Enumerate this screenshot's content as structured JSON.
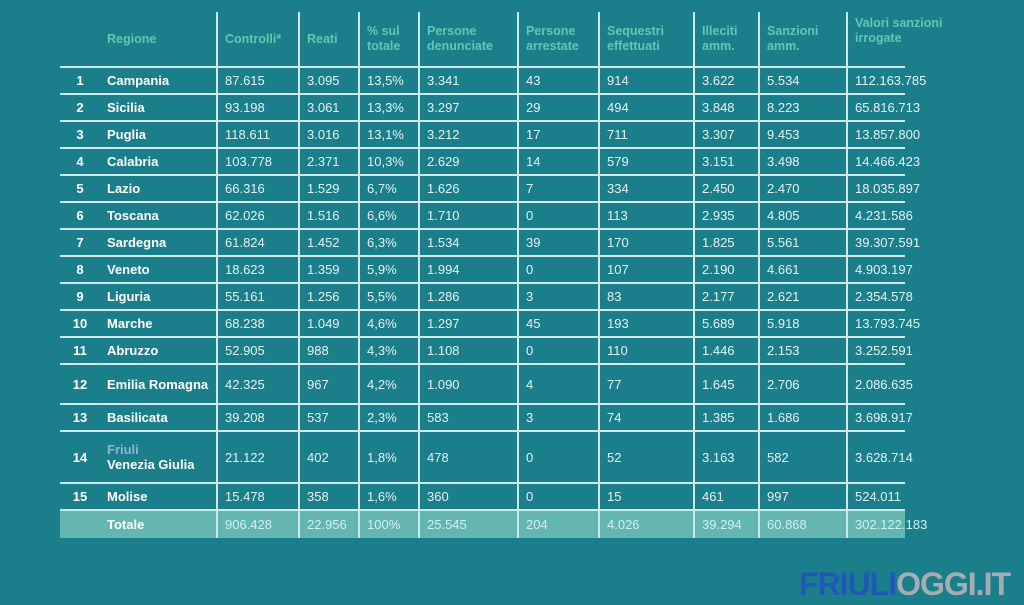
{
  "headers": [
    "",
    "Regione",
    "Controlli*",
    "Reati",
    "% sul totale",
    "Persone denunciate",
    "Persone arrestate",
    "Sequestri effettuati",
    "Illeciti amm.",
    "Sanzioni amm.",
    "Valori sanzioni irrogate"
  ],
  "rows": [
    [
      "1",
      "Campania",
      "87.615",
      "3.095",
      "13,5%",
      "3.341",
      "43",
      "914",
      "3.622",
      "5.534",
      "112.163.785"
    ],
    [
      "2",
      "Sicilia",
      "93.198",
      "3.061",
      "13,3%",
      "3.297",
      "29",
      "494",
      "3.848",
      "8.223",
      "65.816.713"
    ],
    [
      "3",
      "Puglia",
      "118.611",
      "3.016",
      "13,1%",
      "3.212",
      "17",
      "711",
      "3.307",
      "9.453",
      "13.857.800"
    ],
    [
      "4",
      "Calabria",
      "103.778",
      "2.371",
      "10,3%",
      "2.629",
      "14",
      "579",
      "3.151",
      "3.498",
      "14.466.423"
    ],
    [
      "5",
      "Lazio",
      "66.316",
      "1.529",
      "6,7%",
      "1.626",
      "7",
      "334",
      "2.450",
      "2.470",
      "18.035.897"
    ],
    [
      "6",
      "Toscana",
      "62.026",
      "1.516",
      "6,6%",
      "1.710",
      "0",
      "113",
      "2.935",
      "4.805",
      "4.231.586"
    ],
    [
      "7",
      "Sardegna",
      "61.824",
      "1.452",
      "6,3%",
      "1.534",
      "39",
      "170",
      "1.825",
      "5.561",
      "39.307.591"
    ],
    [
      "8",
      "Veneto",
      "18.623",
      "1.359",
      "5,9%",
      "1.994",
      "0",
      "107",
      "2.190",
      "4.661",
      "4.903.197"
    ],
    [
      "9",
      "Liguria",
      "55.161",
      "1.256",
      "5,5%",
      "1.286",
      "3",
      "83",
      "2.177",
      "2.621",
      "2.354.578"
    ],
    [
      "10",
      "Marche",
      "68.238",
      "1.049",
      "4,6%",
      "1.297",
      "45",
      "193",
      "5.689",
      "5.918",
      "13.793.745"
    ],
    [
      "11",
      "Abruzzo",
      "52.905",
      "988",
      "4,3%",
      "1.108",
      "0",
      "110",
      "1.446",
      "2.153",
      "3.252.591"
    ],
    [
      "12",
      "Emilia Romagna",
      "42.325",
      "967",
      "4,2%",
      "1.090",
      "4",
      "77",
      "1.645",
      "2.706",
      "2.086.635"
    ],
    [
      "13",
      "Basilicata",
      "39.208",
      "537",
      "2,3%",
      "583",
      "3",
      "74",
      "1.385",
      "1.686",
      "3.698.917"
    ],
    [
      "14",
      "Friuli Venezia Giulia",
      "21.122",
      "402",
      "1,8%",
      "478",
      "0",
      "52",
      "3.163",
      "582",
      "3.628.714"
    ],
    [
      "15",
      "Molise",
      "15.478",
      "358",
      "1,6%",
      "360",
      "0",
      "15",
      "461",
      "997",
      "524.011"
    ]
  ],
  "total": [
    "",
    "Totale",
    "906.428",
    "22.956",
    "100%",
    "25.545",
    "204",
    "4.026",
    "39.294",
    "60.868",
    "302.122.183"
  ],
  "logo": {
    "part1": "FRIULI",
    "part2": "OGGI.IT"
  }
}
